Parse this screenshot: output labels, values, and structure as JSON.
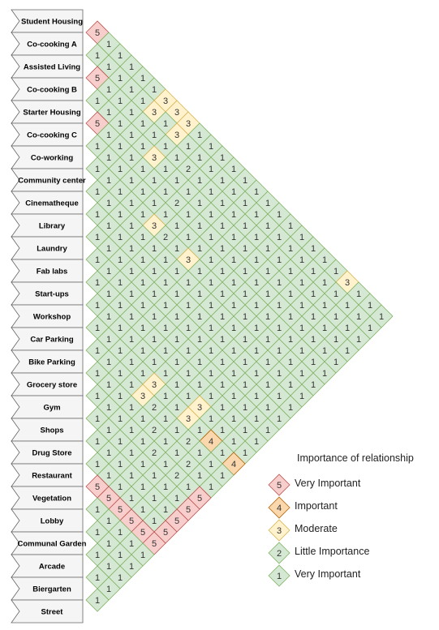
{
  "diagram": {
    "rows": [
      "Student Housing",
      "Co-cooking A",
      "Assisted Living",
      "Co-cooking B",
      "Starter Housing",
      "Co-cooking C",
      "Co-working",
      "Community center",
      "Cinematheque",
      "Library",
      "Laundry",
      "Fab labs",
      "Start-ups",
      "Workshop",
      "Car Parking",
      "Bike Parking",
      "Grocery store",
      "Gym",
      "Shops",
      "Drug Store",
      "Restaurant",
      "Vegetation",
      "Lobby",
      "Communal Garden",
      "Arcade",
      "Biergarten",
      "Street"
    ],
    "default_value": 1,
    "special_cells": [
      {
        "i": 0,
        "j": 1,
        "v": 5
      },
      {
        "i": 2,
        "j": 3,
        "v": 5
      },
      {
        "i": 4,
        "j": 5,
        "v": 5
      },
      {
        "i": 0,
        "j": 9,
        "v": 3
      },
      {
        "i": 1,
        "j": 9,
        "v": 3
      },
      {
        "i": 0,
        "j": 8,
        "v": 3
      },
      {
        "i": 1,
        "j": 7,
        "v": 3
      },
      {
        "i": 0,
        "j": 7,
        "v": 3
      },
      {
        "i": 3,
        "j": 9,
        "v": 3
      },
      {
        "i": 6,
        "j": 12,
        "v": 3
      },
      {
        "i": 6,
        "j": 15,
        "v": 3
      },
      {
        "i": 2,
        "j": 11,
        "v": 2
      },
      {
        "i": 4,
        "j": 12,
        "v": 2
      },
      {
        "i": 6,
        "j": 13,
        "v": 2
      },
      {
        "i": 13,
        "j": 26,
        "v": 4
      },
      {
        "i": 13,
        "j": 24,
        "v": 4
      },
      {
        "i": 14,
        "j": 23,
        "v": 2
      },
      {
        "i": 15,
        "j": 24,
        "v": 2
      },
      {
        "i": 16,
        "j": 24,
        "v": 2
      },
      {
        "i": 14,
        "j": 20,
        "v": 2
      },
      {
        "i": 15,
        "j": 21,
        "v": 2
      },
      {
        "i": 16,
        "j": 22,
        "v": 2
      },
      {
        "i": 13,
        "j": 22,
        "v": 3
      },
      {
        "i": 13,
        "j": 19,
        "v": 3
      },
      {
        "i": 14,
        "j": 19,
        "v": 3
      },
      {
        "i": 12,
        "j": 22,
        "v": 3
      },
      {
        "i": 20,
        "j": 21,
        "v": 5
      },
      {
        "i": 20,
        "j": 22,
        "v": 5
      },
      {
        "i": 20,
        "j": 23,
        "v": 5
      },
      {
        "i": 20,
        "j": 24,
        "v": 5
      },
      {
        "i": 20,
        "j": 25,
        "v": 5
      },
      {
        "i": 20,
        "j": 26,
        "v": 5
      },
      {
        "i": 19,
        "j": 26,
        "v": 5
      },
      {
        "i": 18,
        "j": 26,
        "v": 5
      },
      {
        "i": 17,
        "j": 26,
        "v": 5
      },
      {
        "i": 16,
        "j": 26,
        "v": 5
      },
      {
        "i": 0,
        "j": 23,
        "v": 3
      }
    ]
  },
  "legend": {
    "title": "Importance of relationship",
    "items": [
      {
        "value": "5",
        "label": "Very Important",
        "fill": "#f8cecc",
        "stroke": "#b85450"
      },
      {
        "value": "4",
        "label": "Important",
        "fill": "#fad7ac",
        "stroke": "#b46504"
      },
      {
        "value": "3",
        "label": "Moderate",
        "fill": "#fff2cc",
        "stroke": "#d6b656"
      },
      {
        "value": "2",
        "label": "Little Importance",
        "fill": "#d5e8d4",
        "stroke": "#82b366"
      },
      {
        "value": "1",
        "label": "Very Important",
        "fill": "#d5e8d4",
        "stroke": "#82b366"
      }
    ]
  }
}
